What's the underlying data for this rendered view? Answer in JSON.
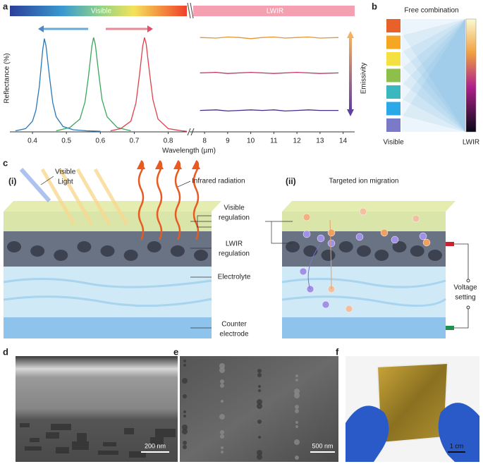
{
  "figure": {
    "panel_labels": [
      "a",
      "b",
      "c",
      "d",
      "e",
      "f"
    ]
  },
  "chart_data": [
    {
      "type": "line",
      "band_label": "Visible",
      "y_label": "Reflectance (%)",
      "x_label": "Wavelength (µm)",
      "xlim": [
        0.35,
        0.855
      ],
      "xticks": [
        0.4,
        0.5,
        0.6,
        0.7,
        0.8
      ],
      "ylim": [
        0,
        100
      ],
      "series": [
        {
          "color": "#2a78b8",
          "x": [
            0.35,
            0.38,
            0.4,
            0.41,
            0.42,
            0.43,
            0.435,
            0.44,
            0.45,
            0.46,
            0.47,
            0.49,
            0.52,
            0.56,
            0.6
          ],
          "values": [
            1,
            3,
            10,
            20,
            42,
            76,
            87,
            80,
            52,
            27,
            14,
            5,
            2,
            1,
            0.5
          ]
        },
        {
          "color": "#3aa75a",
          "x": [
            0.47,
            0.51,
            0.54,
            0.555,
            0.565,
            0.575,
            0.58,
            0.585,
            0.595,
            0.605,
            0.62,
            0.65,
            0.69
          ],
          "values": [
            1,
            4,
            12,
            28,
            52,
            80,
            88,
            82,
            55,
            30,
            14,
            4,
            1
          ]
        },
        {
          "color": "#e0404a",
          "x": [
            0.63,
            0.66,
            0.69,
            0.705,
            0.715,
            0.725,
            0.73,
            0.735,
            0.745,
            0.755,
            0.77,
            0.8,
            0.84,
            0.855
          ],
          "values": [
            1,
            3,
            10,
            27,
            52,
            80,
            88,
            82,
            55,
            30,
            12,
            3,
            1,
            0.5
          ]
        }
      ]
    },
    {
      "type": "line",
      "band_label": "LWIR",
      "y_label": "Emissivity",
      "xlim": [
        7.6,
        14.5
      ],
      "xticks": [
        8,
        9,
        10,
        11,
        12,
        13,
        14
      ],
      "ylim": [
        0,
        100
      ],
      "series": [
        {
          "color": "#e8952e",
          "x": [
            7.8,
            8.5,
            9,
            9.5,
            10,
            10.5,
            11,
            11.5,
            12,
            12.5,
            13,
            13.8
          ],
          "values": [
            88,
            87.5,
            88.5,
            88,
            87,
            88,
            88.5,
            87.5,
            88,
            88.5,
            87.5,
            88
          ]
        },
        {
          "color": "#c0306a",
          "x": [
            7.8,
            8.5,
            9,
            9.5,
            10,
            10.5,
            11,
            11.5,
            12,
            12.5,
            13,
            13.8
          ],
          "values": [
            55,
            55.5,
            54.5,
            55,
            55.5,
            55,
            54.5,
            55,
            55.5,
            55,
            54.5,
            55
          ]
        },
        {
          "color": "#4a2a8a",
          "x": [
            7.8,
            8.5,
            9,
            9.5,
            10,
            10.5,
            11,
            11.5,
            12,
            12.5,
            13,
            13.8
          ],
          "values": [
            20,
            20.5,
            19.5,
            20,
            20.5,
            20,
            20.5,
            19.5,
            20,
            20.5,
            20,
            20
          ]
        }
      ]
    }
  ],
  "panel_b": {
    "title": "Free combination",
    "left_label": "Visible",
    "right_label": "LWIR",
    "colors": [
      "#e8602a",
      "#f5a623",
      "#f5e042",
      "#8cc04a",
      "#3ab8c0",
      "#2aa8e8",
      "#7a7ac8"
    ]
  },
  "panel_c": {
    "sub_labels": [
      "(i)",
      "(ii)"
    ],
    "visible_light": [
      "Visible",
      "Light"
    ],
    "infrared": "Infrared radiation",
    "ion_migration": "Targeted ion migration",
    "layers": [
      [
        "Visible",
        "regulation"
      ],
      [
        "LWIR",
        "regulation"
      ],
      [
        "Electrolyte"
      ],
      [
        "Counter",
        "electrode"
      ]
    ],
    "voltage": [
      "Voltage",
      "setting"
    ]
  },
  "micrographs": {
    "scale_bars": [
      "200 nm",
      "500 nm",
      "1 cm"
    ]
  }
}
